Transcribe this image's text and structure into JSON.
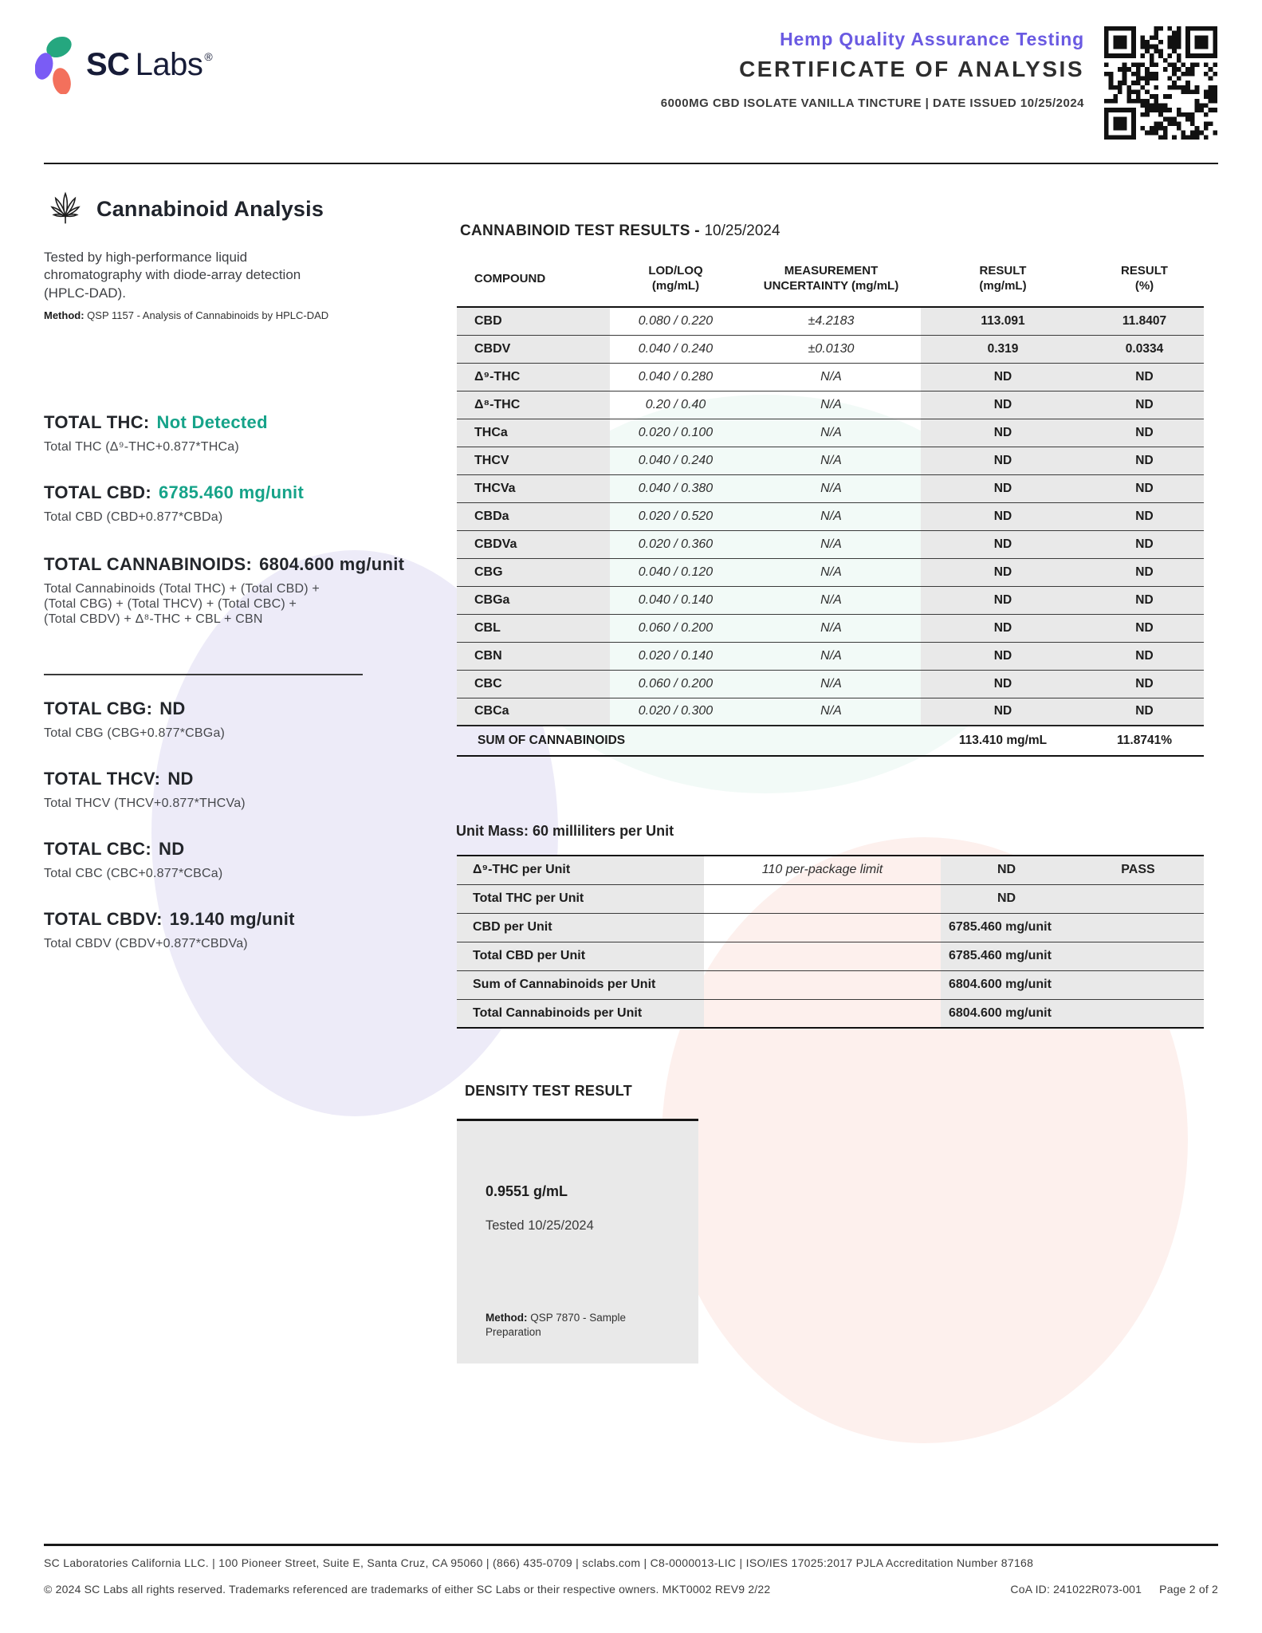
{
  "header": {
    "logo_sc": "SC",
    "logo_labs": "Labs",
    "logo_registered": "®",
    "program_title": "Hemp Quality Assurance Testing",
    "certificate_title": "CERTIFICATE OF ANALYSIS",
    "sample_line": "6000MG CBD ISOLATE VANILLA TINCTURE | DATE ISSUED 10/25/2024"
  },
  "analysis": {
    "section_title": "Cannabinoid Analysis",
    "description": "Tested by high-performance liquid chromatography with diode-array detection (HPLC-DAD).",
    "method_label": "Method:",
    "method_text": "QSP 1157 - Analysis of Cannabinoids by HPLC-DAD",
    "totals_top": [
      {
        "label": "TOTAL THC:",
        "value": "Not Detected",
        "formula": "Total THC (Δ⁹-THC+0.877*THCa)"
      },
      {
        "label": "TOTAL CBD:",
        "value": "6785.460 mg/unit",
        "formula": "Total CBD (CBD+0.877*CBDa)"
      },
      {
        "label": "TOTAL CANNABINOIDS:",
        "value": "6804.600 mg/unit",
        "formula": "Total Cannabinoids (Total THC) + (Total CBD) +\n(Total CBG) + (Total THCV) + (Total CBC) +\n(Total CBDV) + Δ⁸-THC + CBL + CBN"
      }
    ],
    "totals_bottom": [
      {
        "label": "TOTAL CBG:",
        "value": "ND",
        "formula": "Total CBG (CBG+0.877*CBGa)"
      },
      {
        "label": "TOTAL THCV:",
        "value": "ND",
        "formula": "Total THCV (THCV+0.877*THCVa)"
      },
      {
        "label": "TOTAL CBC:",
        "value": "ND",
        "formula": "Total CBC (CBC+0.877*CBCa)"
      },
      {
        "label": "TOTAL CBDV:",
        "value": "19.140 mg/unit",
        "formula": "Total CBDV (CBDV+0.877*CBDVa)"
      }
    ]
  },
  "results": {
    "title_bold": "CANNABINOID TEST RESULTS - ",
    "title_date": "10/25/2024",
    "columns": {
      "compound": "COMPOUND",
      "lod": "LOD/LOQ\n(mg/mL)",
      "mu": "MEASUREMENT\nUNCERTAINTY (mg/mL)",
      "result": "RESULT\n(mg/mL)",
      "pct": "RESULT\n(%)"
    },
    "rows": [
      {
        "compound": "CBD",
        "lod": "0.080 / 0.220",
        "mu": "±4.2183",
        "result": "113.091",
        "pct": "11.8407"
      },
      {
        "compound": "CBDV",
        "lod": "0.040 / 0.240",
        "mu": "±0.0130",
        "result": "0.319",
        "pct": "0.0334"
      },
      {
        "compound": "Δ⁹-THC",
        "lod": "0.040 / 0.280",
        "mu": "N/A",
        "result": "ND",
        "pct": "ND"
      },
      {
        "compound": "Δ⁸-THC",
        "lod": "0.20 / 0.40",
        "mu": "N/A",
        "result": "ND",
        "pct": "ND"
      },
      {
        "compound": "THCa",
        "lod": "0.020 / 0.100",
        "mu": "N/A",
        "result": "ND",
        "pct": "ND"
      },
      {
        "compound": "THCV",
        "lod": "0.040 / 0.240",
        "mu": "N/A",
        "result": "ND",
        "pct": "ND"
      },
      {
        "compound": "THCVa",
        "lod": "0.040 / 0.380",
        "mu": "N/A",
        "result": "ND",
        "pct": "ND"
      },
      {
        "compound": "CBDa",
        "lod": "0.020 / 0.520",
        "mu": "N/A",
        "result": "ND",
        "pct": "ND"
      },
      {
        "compound": "CBDVa",
        "lod": "0.020 / 0.360",
        "mu": "N/A",
        "result": "ND",
        "pct": "ND"
      },
      {
        "compound": "CBG",
        "lod": "0.040 / 0.120",
        "mu": "N/A",
        "result": "ND",
        "pct": "ND"
      },
      {
        "compound": "CBGa",
        "lod": "0.040 / 0.140",
        "mu": "N/A",
        "result": "ND",
        "pct": "ND"
      },
      {
        "compound": "CBL",
        "lod": "0.060 / 0.200",
        "mu": "N/A",
        "result": "ND",
        "pct": "ND"
      },
      {
        "compound": "CBN",
        "lod": "0.020 / 0.140",
        "mu": "N/A",
        "result": "ND",
        "pct": "ND"
      },
      {
        "compound": "CBC",
        "lod": "0.060 / 0.200",
        "mu": "N/A",
        "result": "ND",
        "pct": "ND"
      },
      {
        "compound": "CBCa",
        "lod": "0.020 / 0.300",
        "mu": "N/A",
        "result": "ND",
        "pct": "ND"
      }
    ],
    "sum_row": {
      "label": "SUM OF CANNABINOIDS",
      "result": "113.410 mg/mL",
      "pct": "11.8741%"
    }
  },
  "unit_mass": {
    "title": "Unit Mass: 60 milliliters per Unit",
    "rows": [
      {
        "label": "Δ⁹-THC per Unit",
        "limit": "110 per-package limit",
        "result": "ND",
        "status": "PASS"
      },
      {
        "label": "Total THC per Unit",
        "limit": "",
        "result": "ND",
        "status": ""
      },
      {
        "label": "CBD per Unit",
        "value": "6785.460 mg/unit"
      },
      {
        "label": "Total CBD per Unit",
        "value": "6785.460 mg/unit"
      },
      {
        "label": "Sum of Cannabinoids per Unit",
        "value": "6804.600 mg/unit"
      },
      {
        "label": "Total Cannabinoids per Unit",
        "value": "6804.600 mg/unit"
      }
    ]
  },
  "density": {
    "title": "DENSITY TEST RESULT",
    "value": "0.9551 g/mL",
    "tested": "Tested 10/25/2024",
    "method_label": "Method:",
    "method_text": "QSP 7870 - Sample Preparation"
  },
  "footer": {
    "line1": "SC Laboratories California LLC. | 100 Pioneer Street, Suite E, Santa Cruz, CA 95060 | (866) 435-0709 | sclabs.com | C8-0000013-LIC | ISO/IES 17025:2017 PJLA Accreditation Number 87168",
    "line2": "© 2024 SC Labs all rights reserved. Trademarks referenced are trademarks of either SC Labs or their respective owners. MKT0002 REV9 2/22",
    "coa_id": "CoA ID: 241022R073-001",
    "page": "Page 2 of 2"
  },
  "colors": {
    "accent_purple": "#6a5ae2",
    "accent_teal": "#16a389",
    "logo_purple": "#7a5cf5",
    "logo_green": "#25a77f",
    "logo_coral": "#f3705c",
    "cell_gray": "#e9e9e9"
  }
}
